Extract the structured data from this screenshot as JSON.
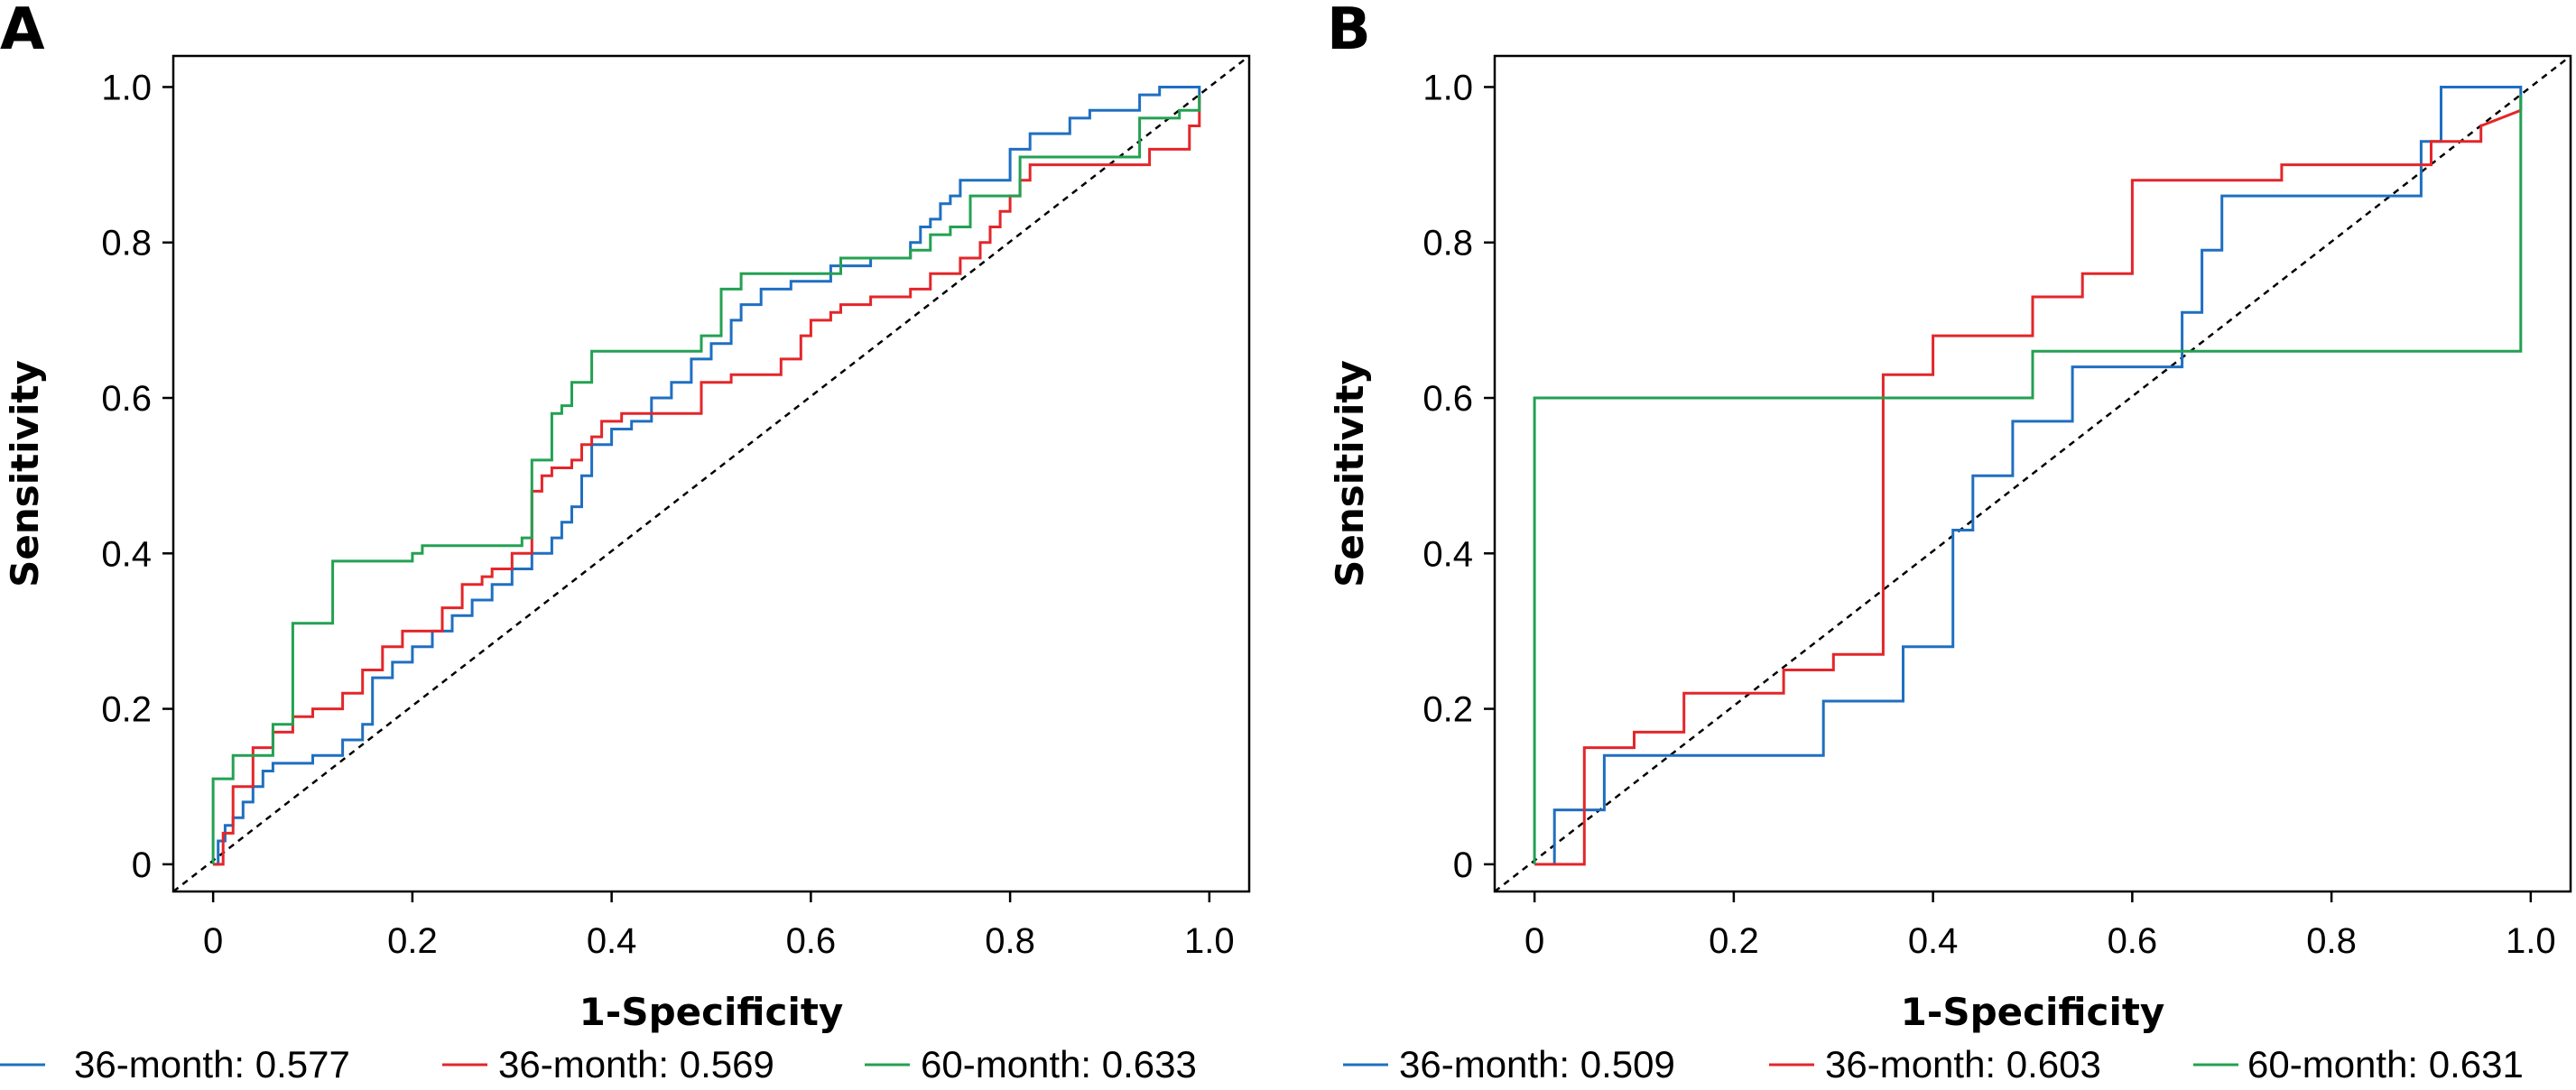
{
  "panels": [
    {
      "letter": "A",
      "chart_data": {
        "type": "line",
        "title": "",
        "xlabel": "1-Specificity",
        "ylabel": "Sensitivity",
        "xlim": [
          -0.04,
          1.04
        ],
        "ylim": [
          -0.035,
          1.04
        ],
        "xticks": [
          0,
          0.2,
          0.4,
          0.6,
          0.8,
          1.0
        ],
        "xtick_labels": [
          "0",
          "0.2",
          "0.4",
          "0.6",
          "0.8",
          "1.0"
        ],
        "yticks": [
          0,
          0.2,
          0.4,
          0.6,
          0.8,
          1.0
        ],
        "ytick_labels": [
          "0",
          "0.2",
          "0.4",
          "0.6",
          "0.8",
          "1.0"
        ],
        "grid": false,
        "legend_position": "bottom",
        "reference_line": {
          "x": [
            -0.04,
            1.04
          ],
          "y": [
            -0.035,
            1.04
          ],
          "style": "dashed",
          "color": "#000000"
        },
        "series": [
          {
            "name": "36-month: 0.577",
            "color": "#1f6fc1",
            "x": [
              0,
              0.005,
              0.005,
              0.012,
              0.012,
              0.02,
              0.02,
              0.03,
              0.03,
              0.04,
              0.04,
              0.05,
              0.05,
              0.06,
              0.06,
              0.1,
              0.1,
              0.13,
              0.13,
              0.15,
              0.15,
              0.16,
              0.16,
              0.18,
              0.18,
              0.2,
              0.2,
              0.22,
              0.22,
              0.24,
              0.24,
              0.26,
              0.26,
              0.28,
              0.28,
              0.3,
              0.3,
              0.32,
              0.32,
              0.34,
              0.34,
              0.35,
              0.35,
              0.36,
              0.36,
              0.37,
              0.37,
              0.38,
              0.38,
              0.4,
              0.4,
              0.42,
              0.42,
              0.44,
              0.44,
              0.46,
              0.46,
              0.48,
              0.48,
              0.5,
              0.5,
              0.52,
              0.52,
              0.53,
              0.53,
              0.55,
              0.55,
              0.58,
              0.58,
              0.62,
              0.62,
              0.66,
              0.66,
              0.7,
              0.7,
              0.71,
              0.71,
              0.72,
              0.72,
              0.73,
              0.73,
              0.74,
              0.74,
              0.75,
              0.75,
              0.8,
              0.8,
              0.82,
              0.82,
              0.86,
              0.86,
              0.88,
              0.88,
              0.93,
              0.93,
              0.95,
              0.95,
              0.99,
              0.99
            ],
            "y": [
              0,
              0,
              0.03,
              0.03,
              0.05,
              0.05,
              0.06,
              0.06,
              0.08,
              0.08,
              0.1,
              0.1,
              0.12,
              0.12,
              0.13,
              0.13,
              0.14,
              0.14,
              0.16,
              0.16,
              0.18,
              0.18,
              0.24,
              0.24,
              0.26,
              0.26,
              0.28,
              0.28,
              0.3,
              0.3,
              0.32,
              0.32,
              0.34,
              0.34,
              0.36,
              0.36,
              0.38,
              0.38,
              0.4,
              0.4,
              0.42,
              0.42,
              0.44,
              0.44,
              0.46,
              0.46,
              0.5,
              0.5,
              0.54,
              0.54,
              0.56,
              0.56,
              0.57,
              0.57,
              0.6,
              0.6,
              0.62,
              0.62,
              0.65,
              0.65,
              0.67,
              0.67,
              0.7,
              0.7,
              0.72,
              0.72,
              0.74,
              0.74,
              0.75,
              0.75,
              0.77,
              0.77,
              0.78,
              0.78,
              0.8,
              0.8,
              0.82,
              0.82,
              0.83,
              0.83,
              0.85,
              0.85,
              0.86,
              0.86,
              0.88,
              0.88,
              0.92,
              0.92,
              0.94,
              0.94,
              0.96,
              0.96,
              0.97,
              0.97,
              0.99,
              0.99,
              1.0,
              1.0,
              0.98
            ]
          },
          {
            "name": "36-month: 0.569",
            "color": "#e3262a",
            "x": [
              0,
              0.01,
              0.01,
              0.02,
              0.02,
              0.04,
              0.04,
              0.06,
              0.06,
              0.08,
              0.08,
              0.1,
              0.1,
              0.13,
              0.13,
              0.15,
              0.15,
              0.17,
              0.17,
              0.19,
              0.19,
              0.23,
              0.23,
              0.25,
              0.25,
              0.27,
              0.27,
              0.28,
              0.28,
              0.3,
              0.3,
              0.32,
              0.32,
              0.33,
              0.33,
              0.34,
              0.34,
              0.36,
              0.36,
              0.37,
              0.37,
              0.38,
              0.38,
              0.39,
              0.39,
              0.41,
              0.41,
              0.49,
              0.49,
              0.52,
              0.52,
              0.57,
              0.57,
              0.59,
              0.59,
              0.6,
              0.6,
              0.62,
              0.62,
              0.63,
              0.63,
              0.66,
              0.66,
              0.7,
              0.7,
              0.72,
              0.72,
              0.75,
              0.75,
              0.77,
              0.77,
              0.78,
              0.78,
              0.79,
              0.79,
              0.8,
              0.8,
              0.81,
              0.81,
              0.82,
              0.82,
              0.94,
              0.94,
              0.98,
              0.98,
              0.99,
              0.99
            ],
            "y": [
              0,
              0,
              0.04,
              0.04,
              0.1,
              0.1,
              0.15,
              0.15,
              0.17,
              0.17,
              0.19,
              0.19,
              0.2,
              0.2,
              0.22,
              0.22,
              0.25,
              0.25,
              0.28,
              0.28,
              0.3,
              0.3,
              0.33,
              0.33,
              0.36,
              0.36,
              0.37,
              0.37,
              0.38,
              0.38,
              0.4,
              0.4,
              0.48,
              0.48,
              0.5,
              0.5,
              0.51,
              0.51,
              0.52,
              0.52,
              0.54,
              0.54,
              0.55,
              0.55,
              0.57,
              0.57,
              0.58,
              0.58,
              0.62,
              0.62,
              0.63,
              0.63,
              0.65,
              0.65,
              0.68,
              0.68,
              0.7,
              0.7,
              0.71,
              0.71,
              0.72,
              0.72,
              0.73,
              0.73,
              0.74,
              0.74,
              0.76,
              0.76,
              0.78,
              0.78,
              0.8,
              0.8,
              0.82,
              0.82,
              0.84,
              0.84,
              0.86,
              0.86,
              0.88,
              0.88,
              0.9,
              0.9,
              0.92,
              0.92,
              0.95,
              0.95,
              0.99
            ]
          },
          {
            "name": "60-month: 0.633",
            "color": "#23a152",
            "x": [
              0,
              0,
              0.02,
              0.02,
              0.06,
              0.06,
              0.08,
              0.08,
              0.12,
              0.12,
              0.2,
              0.2,
              0.21,
              0.21,
              0.31,
              0.31,
              0.32,
              0.32,
              0.34,
              0.34,
              0.35,
              0.35,
              0.36,
              0.36,
              0.38,
              0.38,
              0.49,
              0.49,
              0.51,
              0.51,
              0.53,
              0.53,
              0.63,
              0.63,
              0.7,
              0.7,
              0.72,
              0.72,
              0.74,
              0.74,
              0.76,
              0.76,
              0.81,
              0.81,
              0.93,
              0.93,
              0.97,
              0.97,
              0.99,
              0.99
            ],
            "y": [
              0,
              0.11,
              0.11,
              0.14,
              0.14,
              0.18,
              0.18,
              0.31,
              0.31,
              0.39,
              0.39,
              0.4,
              0.4,
              0.41,
              0.41,
              0.42,
              0.42,
              0.52,
              0.52,
              0.58,
              0.58,
              0.59,
              0.59,
              0.62,
              0.62,
              0.66,
              0.66,
              0.68,
              0.68,
              0.74,
              0.74,
              0.76,
              0.76,
              0.78,
              0.78,
              0.79,
              0.79,
              0.81,
              0.81,
              0.82,
              0.82,
              0.86,
              0.86,
              0.91,
              0.91,
              0.96,
              0.96,
              0.97,
              0.97,
              0.99
            ]
          }
        ]
      }
    },
    {
      "letter": "B",
      "chart_data": {
        "type": "line",
        "title": "",
        "xlabel": "1-Specificity",
        "ylabel": "Sensitivity",
        "xlim": [
          -0.04,
          1.04
        ],
        "ylim": [
          -0.035,
          1.04
        ],
        "xticks": [
          0,
          0.2,
          0.4,
          0.6,
          0.8,
          1.0
        ],
        "xtick_labels": [
          "0",
          "0.2",
          "0.4",
          "0.6",
          "0.8",
          "1.0"
        ],
        "yticks": [
          0,
          0.2,
          0.4,
          0.6,
          0.8,
          1.0
        ],
        "ytick_labels": [
          "0",
          "0.2",
          "0.4",
          "0.6",
          "0.8",
          "1.0"
        ],
        "grid": false,
        "legend_position": "bottom",
        "reference_line": {
          "x": [
            -0.04,
            1.04
          ],
          "y": [
            -0.035,
            1.04
          ],
          "style": "dashed",
          "color": "#000000"
        },
        "series": [
          {
            "name": "36-month: 0.509",
            "color": "#1f6fc1",
            "x": [
              0.02,
              0.02,
              0.07,
              0.07,
              0.29,
              0.29,
              0.37,
              0.37,
              0.42,
              0.42,
              0.44,
              0.44,
              0.48,
              0.48,
              0.54,
              0.54,
              0.65,
              0.65,
              0.67,
              0.67,
              0.69,
              0.69,
              0.89,
              0.89,
              0.91,
              0.91,
              0.99,
              0.99
            ],
            "y": [
              0,
              0.07,
              0.07,
              0.14,
              0.14,
              0.21,
              0.21,
              0.28,
              0.28,
              0.43,
              0.43,
              0.5,
              0.5,
              0.57,
              0.57,
              0.64,
              0.64,
              0.71,
              0.71,
              0.79,
              0.79,
              0.86,
              0.86,
              0.93,
              0.93,
              1.0,
              1.0,
              0.97
            ]
          },
          {
            "name": "36-month: 0.603",
            "color": "#e3262a",
            "x": [
              0,
              0.05,
              0.05,
              0.1,
              0.1,
              0.15,
              0.15,
              0.25,
              0.25,
              0.3,
              0.3,
              0.35,
              0.35,
              0.4,
              0.4,
              0.5,
              0.5,
              0.55,
              0.55,
              0.6,
              0.6,
              0.75,
              0.75,
              0.9,
              0.9,
              0.95,
              0.95,
              0.99
            ],
            "y": [
              0,
              0,
              0.15,
              0.15,
              0.17,
              0.17,
              0.22,
              0.22,
              0.25,
              0.25,
              0.27,
              0.27,
              0.63,
              0.63,
              0.68,
              0.68,
              0.73,
              0.73,
              0.76,
              0.76,
              0.88,
              0.88,
              0.9,
              0.9,
              0.93,
              0.93,
              0.95,
              0.97
            ]
          },
          {
            "name": "60-month: 0.631",
            "color": "#23a152",
            "x": [
              0,
              0,
              0.5,
              0.5,
              0.99,
              0.99
            ],
            "y": [
              0,
              0.6,
              0.6,
              0.66,
              0.66,
              0.99
            ]
          }
        ]
      }
    }
  ]
}
